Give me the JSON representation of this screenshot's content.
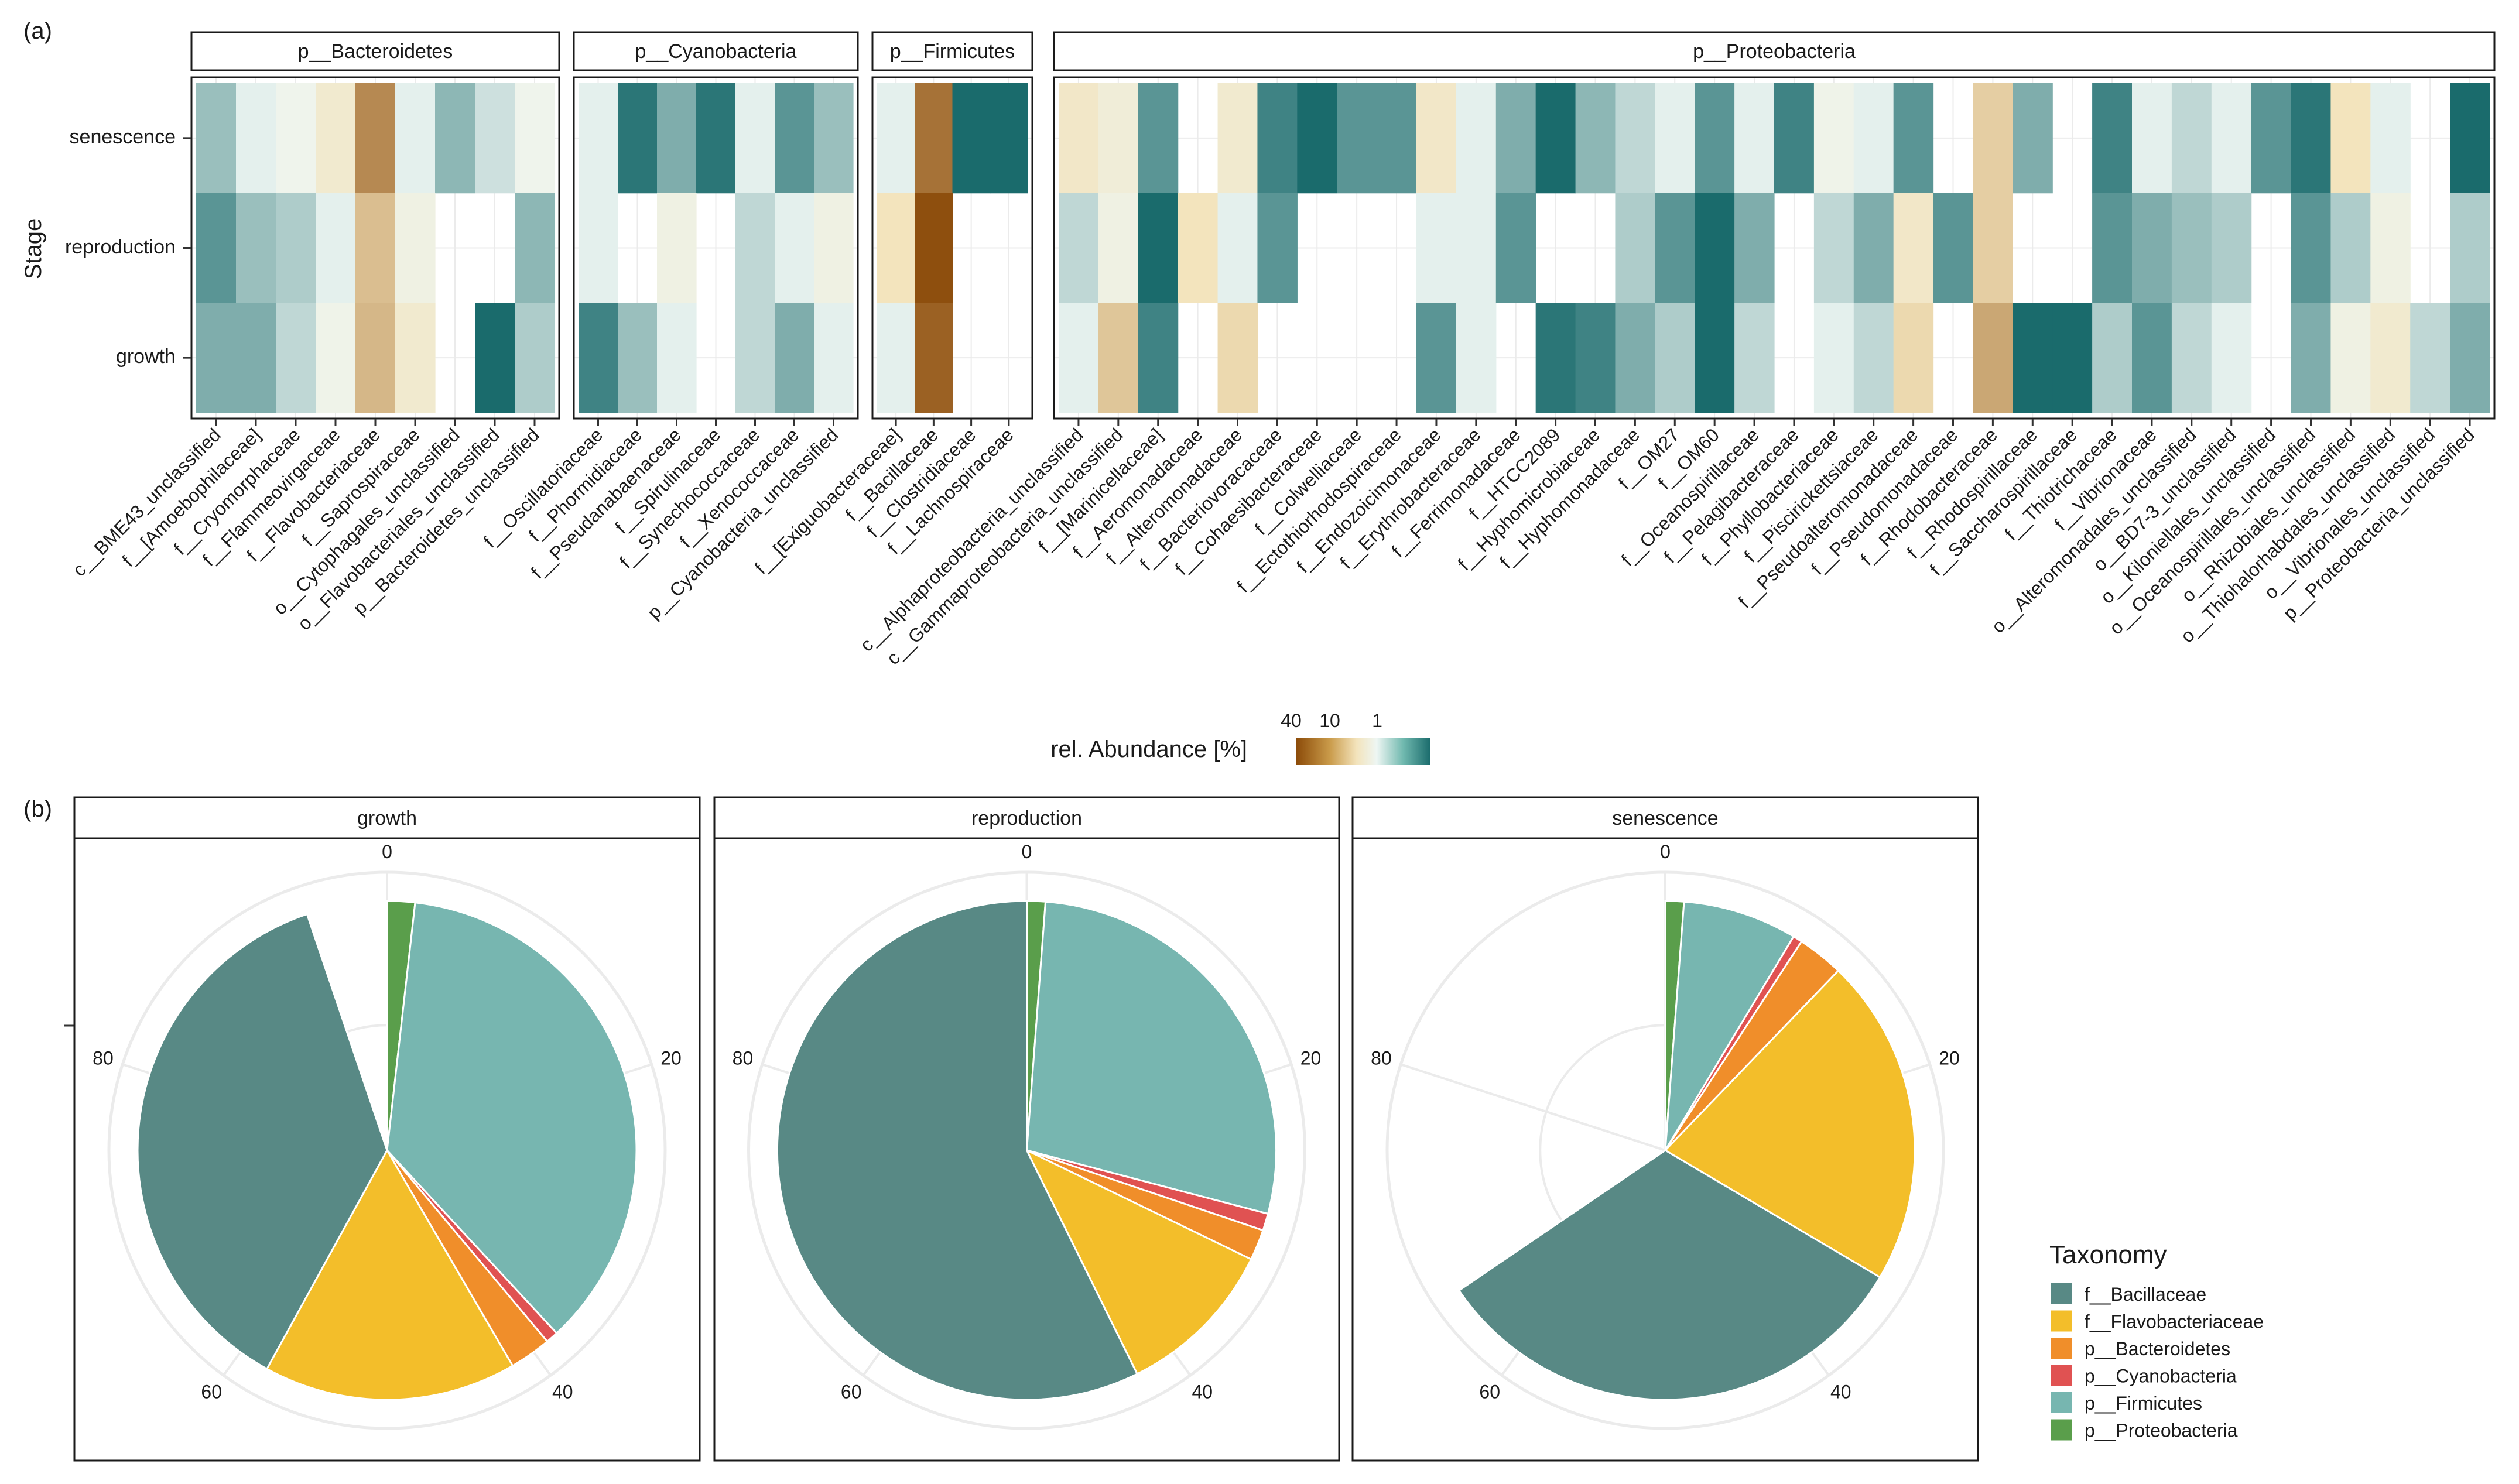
{
  "panel_labels": {
    "a": "(a)",
    "b": "(b)"
  },
  "chart_data": [
    {
      "type": "heatmap",
      "ylabel": "Stage",
      "rows": [
        "senescence",
        "reproduction",
        "growth"
      ],
      "colorbar": {
        "title": "rel. Abundance [%]",
        "tick_labels": [
          "40",
          "10",
          "1"
        ],
        "scale": "log10",
        "range": [
          0.1,
          60
        ],
        "low_color": "#1a6b6c",
        "mid_color": "#eef6f3",
        "high_color": "#8b4a08"
      },
      "facets": [
        {
          "label": "p__Bacteroidetes",
          "columns": [
            "c__BME43_unclassified",
            "f__[Amoebophilaceae]",
            "f__Cryomorphaceae",
            "f__Flammeovirgaceae",
            "f__Flavobacteriaceae",
            "f__Saprospiraceae",
            "o__Cytophagales_unclassified",
            "o__Flavobacteriales_unclassified",
            "p__Bacteroidetes_unclassified"
          ],
          "values": {
            "senescence": [
              0.4,
              0.9,
              1.2,
              2.5,
              20,
              0.9,
              0.35,
              0.7,
              1.2
            ],
            "reproduction": [
              0.2,
              0.4,
              0.5,
              0.9,
              8,
              1.5,
              null,
              null,
              0.35
            ],
            "growth": [
              0.3,
              0.3,
              0.6,
              1.3,
              9,
              2.5,
              null,
              0.1,
              0.5
            ]
          }
        },
        {
          "label": "p__Cyanobacteria",
          "columns": [
            "f__Oscillatoriaceae",
            "f__Phormidiaceae",
            "f__Pseudanabaenaceae",
            "f__Spirulinaceae",
            "f__Synechococcaceae",
            "f__Xenococcaceae",
            "p__Cyanobacteria_unclassified"
          ],
          "values": {
            "senescence": [
              0.9,
              0.12,
              0.3,
              0.12,
              0.9,
              0.2,
              0.4
            ],
            "reproduction": [
              0.9,
              null,
              1.5,
              null,
              0.6,
              0.9,
              1.5
            ],
            "growth": [
              0.15,
              0.4,
              0.9,
              null,
              0.6,
              0.3,
              0.9
            ]
          }
        },
        {
          "label": "p__Firmicutes",
          "columns": [
            "f__[Exiguobacteraceae]",
            "f__Bacillaceae",
            "f__Clostridiaceae",
            "f__Lachnospiraceae"
          ],
          "values": {
            "senescence": [
              0.9,
              30,
              0.08,
              0.1
            ],
            "reproduction": [
              4,
              55,
              null,
              null
            ],
            "growth": [
              0.9,
              40,
              null,
              null
            ]
          }
        },
        {
          "label": "p__Proteobacteria",
          "columns": [
            "c__Alphaproteobacteria_unclassified",
            "c__Gammaproteobacteria_unclassified",
            "f__[Marinicellaceae]",
            "f__Aeromonadaceae",
            "f__Alteromonadaceae",
            "f__Bacteriovoracaceae",
            "f__Cohaesibacteraceae",
            "f__Colwelliaceae",
            "f__Ectothiorhodospiraceae",
            "f__Endozoicimonaceae",
            "f__Erythrobacteraceae",
            "f__Ferrimonadaceae",
            "f__HTCC2089",
            "f__Hyphomicrobiaceae",
            "f__Hyphomonadaceae",
            "f__OM27",
            "f__OM60",
            "f__Oceanospirillaceae",
            "f__Pelagibacteraceae",
            "f__Phyllobacteriaceae",
            "f__Piscirickettsiaceae",
            "f__Pseudoalteromonadaceae",
            "f__Pseudomonadaceae",
            "f__Rhodobacteraceae",
            "f__Rhodospirillaceae",
            "f__Saccharospirillaceae",
            "f__Thiotrichaceae",
            "f__Vibrionaceae",
            "o__Alteromonadales_unclassified",
            "o__BD7-3_unclassified",
            "o__Kiloniellales_unclassified",
            "o__Oceanospirillales_unclassified",
            "o__Rhizobiales_unclassified",
            "o__Thiohalorhabdales_unclassified",
            "o__Vibrionales_unclassified",
            "p__Proteobacteria_unclassified"
          ],
          "values": {
            "senescence": [
              3,
              2,
              0.2,
              null,
              2.5,
              0.15,
              0.1,
              0.2,
              0.2,
              3,
              0.9,
              0.3,
              0.1,
              0.35,
              0.6,
              0.9,
              0.2,
              0.9,
              0.15,
              1.3,
              0.9,
              0.2,
              null,
              6,
              0.3,
              null,
              0.15,
              0.9,
              0.6,
              0.9,
              0.2,
              0.12,
              4,
              0.9,
              null,
              0.1
            ],
            "reproduction": [
              0.6,
              1.5,
              0.07,
              4,
              0.9,
              0.2,
              null,
              null,
              null,
              0.9,
              0.9,
              0.2,
              null,
              null,
              0.5,
              0.2,
              0.07,
              0.3,
              null,
              0.6,
              0.3,
              3,
              0.2,
              6,
              null,
              null,
              0.2,
              0.3,
              0.4,
              0.5,
              null,
              0.2,
              0.5,
              1.5,
              null,
              0.5
            ],
            "growth": [
              0.9,
              7,
              0.15,
              null,
              5,
              null,
              null,
              null,
              null,
              0.2,
              0.9,
              null,
              0.12,
              0.15,
              0.3,
              0.5,
              0.07,
              0.6,
              null,
              0.9,
              0.6,
              5,
              null,
              12,
              0.08,
              0.08,
              0.5,
              0.2,
              0.6,
              0.9,
              null,
              0.3,
              1.5,
              2.5,
              0.6,
              0.3
            ]
          }
        }
      ]
    },
    {
      "type": "pie",
      "coord": "polar",
      "axis_ticks": [
        "0",
        "20",
        "40",
        "60",
        "80"
      ],
      "axis_range": [
        0,
        100
      ],
      "legend_title": "Taxonomy",
      "legend_position": "right",
      "categories": [
        "f__Bacillaceae",
        "f__Flavobacteriaceae",
        "p__Bacteroidetes",
        "p__Cyanobacteria",
        "p__Firmicutes",
        "p__Proteobacteria"
      ],
      "colors": [
        "#588985",
        "#f3be2a",
        "#f08e2a",
        "#e05252",
        "#77b6b0",
        "#5a9e4b"
      ],
      "facets": [
        {
          "label": "growth",
          "slices": [
            {
              "category": "p__Proteobacteria",
              "value": 1.8
            },
            {
              "category": "p__Firmicutes",
              "value": 36.3
            },
            {
              "category": "p__Cyanobacteria",
              "value": 0.8
            },
            {
              "category": "p__Bacteroidetes",
              "value": 2.7
            },
            {
              "category": "f__Flavobacteriaceae",
              "value": 16.4
            },
            {
              "category": "f__Bacillaceae",
              "value": 36.8
            }
          ]
        },
        {
          "label": "reproduction",
          "slices": [
            {
              "category": "p__Proteobacteria",
              "value": 1.2
            },
            {
              "category": "p__Firmicutes",
              "value": 27.9
            },
            {
              "category": "p__Cyanobacteria",
              "value": 1.1
            },
            {
              "category": "p__Bacteroidetes",
              "value": 2.0
            },
            {
              "category": "f__Flavobacteriaceae",
              "value": 10.5
            },
            {
              "category": "f__Bacillaceae",
              "value": 57.3
            }
          ]
        },
        {
          "label": "senescence",
          "slices": [
            {
              "category": "p__Proteobacteria",
              "value": 1.2
            },
            {
              "category": "p__Firmicutes",
              "value": 7.4
            },
            {
              "category": "p__Cyanobacteria",
              "value": 0.6
            },
            {
              "category": "p__Bacteroidetes",
              "value": 3.0
            },
            {
              "category": "f__Flavobacteriaceae",
              "value": 21.3
            },
            {
              "category": "f__Bacillaceae",
              "value": 32.0
            }
          ]
        }
      ]
    }
  ]
}
